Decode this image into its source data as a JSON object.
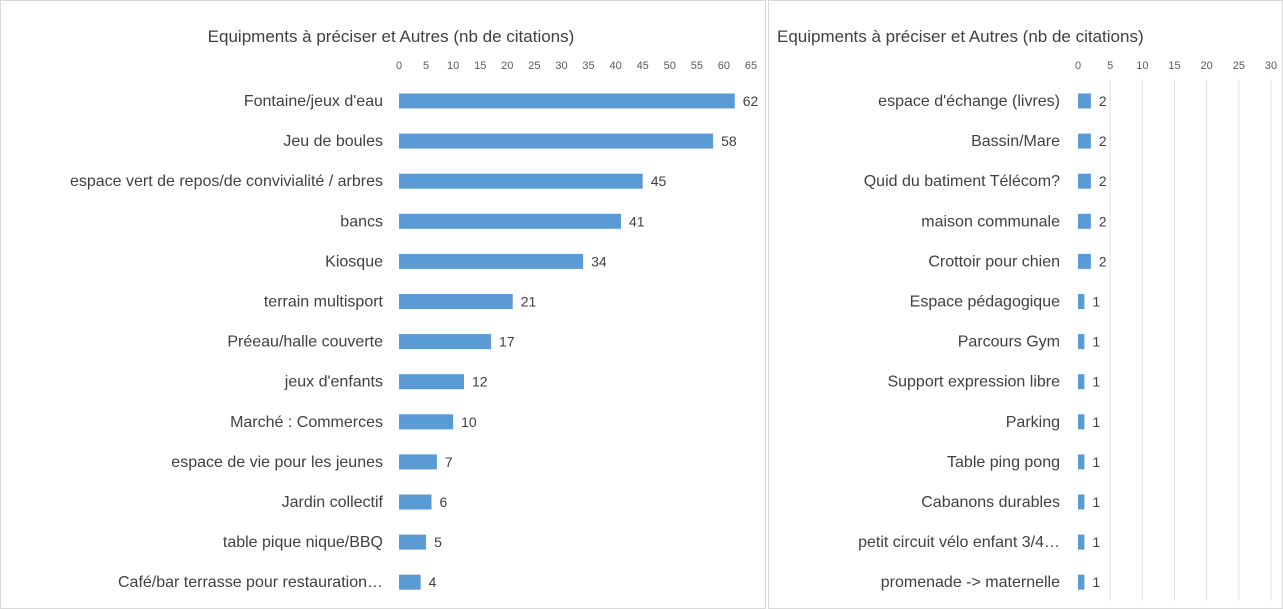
{
  "chart_data": [
    {
      "type": "bar",
      "orientation": "horizontal",
      "title": "Equipments à préciser et Autres (nb de citations)",
      "categories": [
        "Fontaine/jeux d'eau",
        "Jeu de boules",
        "espace vert de repos/de convivialité / arbres",
        "bancs",
        "Kiosque",
        "terrain multisport",
        "Préeau/halle couverte",
        "jeux d'enfants",
        "Marché : Commerces",
        "espace de vie pour les jeunes",
        "Jardin collectif",
        "table pique nique/BBQ",
        "Café/bar terrasse pour restauration…"
      ],
      "values": [
        62,
        58,
        45,
        41,
        34,
        21,
        17,
        12,
        10,
        7,
        6,
        5,
        4
      ],
      "xlim": [
        0,
        65
      ],
      "xticks": [
        0,
        5,
        10,
        15,
        20,
        25,
        30,
        35,
        40,
        45,
        50,
        55,
        60,
        65
      ],
      "grid": false,
      "legend": "none",
      "bar_color": "#5b9bd5"
    },
    {
      "type": "bar",
      "orientation": "horizontal",
      "title": "Equipments à préciser et Autres (nb de citations)",
      "categories": [
        "espace d'échange (livres)",
        "Bassin/Mare",
        "Quid du batiment Télécom?",
        "maison communale",
        "Crottoir pour chien",
        "Espace pédagogique",
        "Parcours Gym",
        "Support expression libre",
        "Parking",
        "Table ping pong",
        "Cabanons durables",
        "petit circuit vélo enfant 3/4…",
        "promenade  -> maternelle"
      ],
      "values": [
        2,
        2,
        2,
        2,
        2,
        1,
        1,
        1,
        1,
        1,
        1,
        1,
        1
      ],
      "xlim": [
        0,
        30
      ],
      "xticks": [
        0,
        5,
        10,
        15,
        20,
        25,
        30
      ],
      "grid": true,
      "legend": "none",
      "bar_color": "#5b9bd5"
    }
  ]
}
